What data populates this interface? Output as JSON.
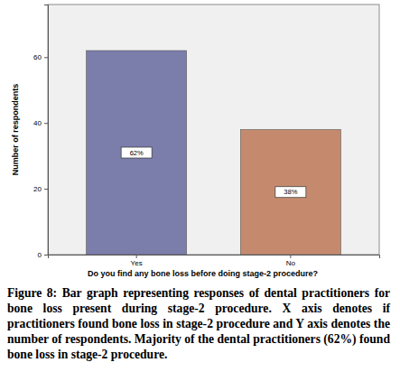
{
  "chart_data": {
    "type": "bar",
    "caption": "Figure 8: Bar graph representing responses of dental practitioners for bone loss present during stage-2 procedure. X axis denotes if practitioners found bone loss in stage-2 procedure and Y axis denotes the number of respondents. Majority of the dental practitioners (62%) found bone loss in stage-2 procedure.",
    "x_label": "Do you find any bone loss before doing stage-2 procedure?",
    "y_label": "Number of respondents",
    "categories": [
      "Yes",
      "No"
    ],
    "values": [
      62,
      38
    ],
    "value_labels": [
      "62%",
      "38%"
    ],
    "colors": [
      "#7b7dab",
      "#c58a6e"
    ],
    "ylim": [
      0,
      76
    ],
    "yticks": [
      0,
      20,
      40,
      60
    ],
    "data_labels": true,
    "grid": false
  }
}
